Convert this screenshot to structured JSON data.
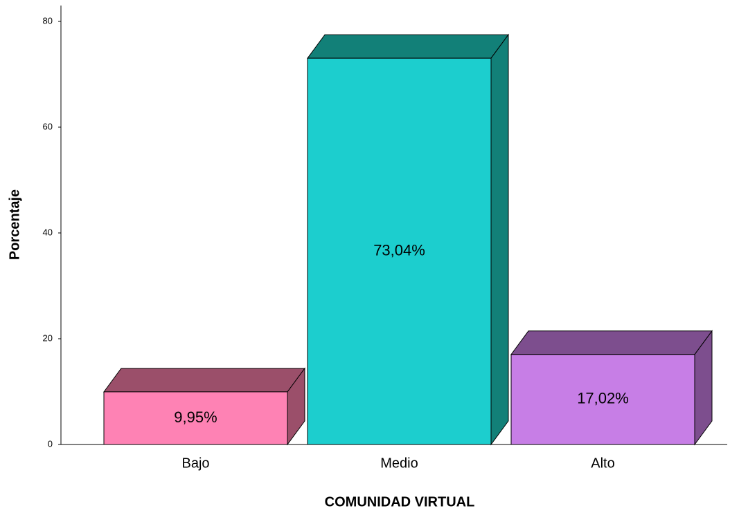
{
  "chart_data": {
    "type": "bar3d",
    "categories": [
      "Bajo",
      "Medio",
      "Alto"
    ],
    "values": [
      9.95,
      73.04,
      17.02
    ],
    "value_labels": [
      "9,95%",
      "73,04%",
      "17,02%"
    ],
    "colors": [
      "#fe82b4",
      "#1ccece",
      "#c77ee6"
    ],
    "side_colors": [
      "#9b4f6a",
      "#128078",
      "#7d4e8e"
    ],
    "xlabel": "COMUNIDAD VIRTUAL",
    "ylabel": "Porcentaje",
    "ylim": [
      0,
      83
    ],
    "yticks": [
      0,
      20,
      40,
      60,
      80
    ],
    "grid": false
  }
}
